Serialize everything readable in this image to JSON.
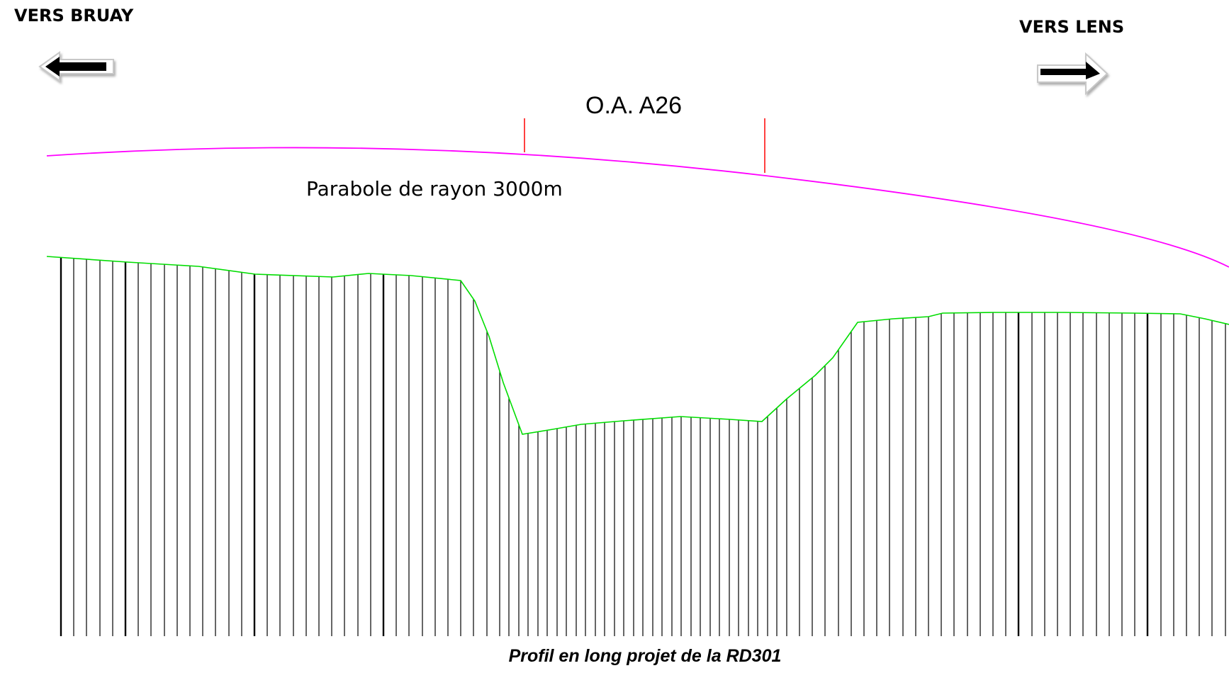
{
  "labels": {
    "left_direction": "VERS BRUAY",
    "right_direction": "VERS LENS",
    "structure": "O.A. A26",
    "parabola": "Parabole de rayon 3000m",
    "caption": "Profil en long projet de la RD301"
  },
  "icons": {
    "left": "arrow-left-icon",
    "right": "arrow-right-icon"
  },
  "colors": {
    "road_profile": "#ff00ff",
    "terrain": "#00dd00",
    "structure_marks": "#ff0000",
    "hatch": "#000000"
  }
}
